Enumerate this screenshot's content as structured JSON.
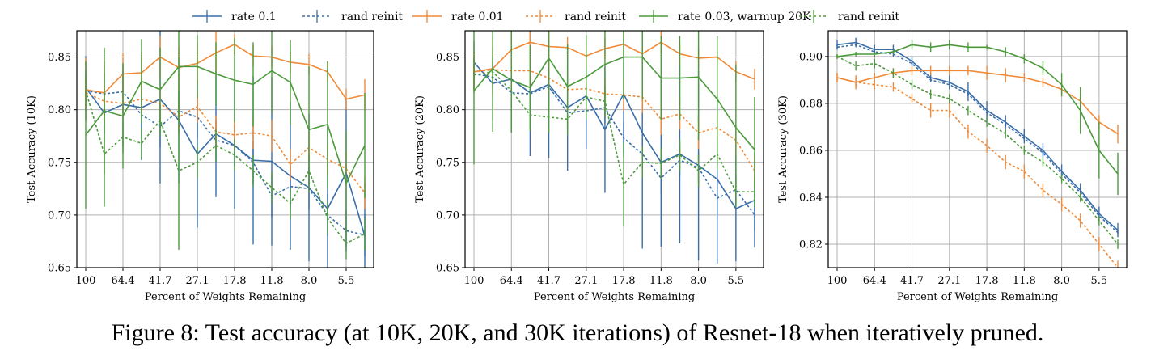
{
  "caption": "Figure 8: Test accuracy (at 10K, 20K, and 30K iterations) of Resnet-18 when iteratively pruned.",
  "legend": [
    {
      "label": "rate 0.1",
      "color": "#3a6ea8",
      "dashed": false
    },
    {
      "label": "rand reinit",
      "color": "#3a6ea8",
      "dashed": true
    },
    {
      "label": "rate 0.01",
      "color": "#f08a38",
      "dashed": false
    },
    {
      "label": "rand reinit",
      "color": "#f08a38",
      "dashed": true
    },
    {
      "label": "rate 0.03, warmup 20K",
      "color": "#4c9a3c",
      "dashed": false
    },
    {
      "label": "rand reinit",
      "color": "#4c9a3c",
      "dashed": true
    }
  ],
  "chart_data": [
    {
      "type": "line",
      "xlabel": "Percent of Weights Remaining",
      "ylabel": "Test Accuracy (10K)",
      "xticks": [
        "100",
        "64.4",
        "41.7",
        "27.1",
        "17.8",
        "11.8",
        "8.0",
        "5.5"
      ],
      "x": [
        "100",
        "80.0",
        "64.4",
        "51.4",
        "41.7",
        "33.5",
        "27.1",
        "21.8",
        "17.8",
        "14.4",
        "11.8",
        "9.6",
        "8.0",
        "6.6",
        "5.5",
        "4.6"
      ],
      "ylim": [
        0.65,
        0.875
      ],
      "yticks": [
        0.65,
        0.7,
        0.75,
        0.8,
        0.85
      ],
      "grid": true,
      "series": [
        {
          "name": "rate 0.1",
          "color": "#3a6ea8",
          "dashed": false,
          "values": [
            0.821,
            0.797,
            0.805,
            0.802,
            0.81,
            0.79,
            0.758,
            0.777,
            0.766,
            0.752,
            0.751,
            0.737,
            0.726,
            0.706,
            0.74,
            0.68
          ],
          "err": [
            0.03,
            0.02,
            0.04,
            0.05,
            0.08,
            0.06,
            0.07,
            0.06,
            0.06,
            0.08,
            0.08,
            0.07,
            0.07,
            0.08,
            0.07,
            0.05
          ]
        },
        {
          "name": "rand reinit",
          "color": "#3a6ea8",
          "dashed": true,
          "values": [
            0.818,
            0.815,
            0.817,
            0.795,
            0.784,
            0.799,
            0.793,
            0.771,
            0.766,
            0.75,
            0.718,
            0.727,
            0.725,
            0.7,
            0.685,
            0.681
          ],
          "err": [
            0.02,
            0.02,
            0.02,
            0.02,
            0.02,
            0.02,
            0.02,
            0.02,
            0.02,
            0.02,
            0.02,
            0.02,
            0.02,
            0.02,
            0.02,
            0.02
          ]
        },
        {
          "name": "rate 0.01",
          "color": "#f08a38",
          "dashed": false,
          "values": [
            0.819,
            0.816,
            0.834,
            0.835,
            0.85,
            0.84,
            0.844,
            0.854,
            0.862,
            0.851,
            0.85,
            0.845,
            0.843,
            0.836,
            0.81,
            0.814
          ],
          "err": [
            0.03,
            0.03,
            0.02,
            0.02,
            0.02,
            0.02,
            0.02,
            0.02,
            0.01,
            0.01,
            0.01,
            0.01,
            0.01,
            0.01,
            0.01,
            0.015
          ]
        },
        {
          "name": "rand reinit",
          "color": "#f08a38",
          "dashed": true,
          "values": [
            0.816,
            0.808,
            0.806,
            0.81,
            0.806,
            0.793,
            0.803,
            0.779,
            0.776,
            0.778,
            0.775,
            0.748,
            0.764,
            0.753,
            0.744,
            0.721
          ],
          "err": [
            0.015,
            0.015,
            0.015,
            0.015,
            0.015,
            0.015,
            0.015,
            0.015,
            0.015,
            0.015,
            0.015,
            0.015,
            0.015,
            0.015,
            0.015,
            0.015
          ]
        },
        {
          "name": "rate 0.03, warmup 20K",
          "color": "#4c9a3c",
          "dashed": false,
          "values": [
            0.776,
            0.799,
            0.794,
            0.827,
            0.819,
            0.841,
            0.841,
            0.834,
            0.828,
            0.824,
            0.837,
            0.826,
            0.781,
            0.786,
            0.73,
            0.766
          ],
          "err": [
            0.07,
            0.06,
            0.05,
            0.04,
            0.04,
            0.05,
            0.03,
            0.03,
            0.04,
            0.04,
            0.04,
            0.04,
            0.06,
            0.06,
            0.05,
            0.05
          ]
        },
        {
          "name": "rand reinit",
          "color": "#4c9a3c",
          "dashed": true,
          "values": [
            0.818,
            0.758,
            0.774,
            0.768,
            0.79,
            0.742,
            0.75,
            0.766,
            0.757,
            0.742,
            0.726,
            0.711,
            0.742,
            0.697,
            0.673,
            0.682
          ],
          "err": [
            0.015,
            0.05,
            0.015,
            0.015,
            0.015,
            0.075,
            0.015,
            0.015,
            0.015,
            0.015,
            0.015,
            0.015,
            0.015,
            0.015,
            0.015,
            0.015
          ]
        }
      ]
    },
    {
      "type": "line",
      "xlabel": "Percent of Weights Remaining",
      "ylabel": "Test Accuracy (20K)",
      "xticks": [
        "100",
        "64.4",
        "41.7",
        "27.1",
        "17.8",
        "11.8",
        "8.0",
        "5.5"
      ],
      "x": [
        "100",
        "80.0",
        "64.4",
        "51.4",
        "41.7",
        "33.5",
        "27.1",
        "21.8",
        "17.8",
        "14.4",
        "11.8",
        "9.6",
        "8.0",
        "6.6",
        "5.5",
        "4.6"
      ],
      "ylim": [
        0.65,
        0.875
      ],
      "yticks": [
        0.65,
        0.7,
        0.75,
        0.8,
        0.85
      ],
      "grid": true,
      "series": [
        {
          "name": "rate 0.1",
          "color": "#3a6ea8",
          "dashed": false,
          "values": [
            0.845,
            0.825,
            0.829,
            0.816,
            0.824,
            0.802,
            0.813,
            0.781,
            0.815,
            0.778,
            0.75,
            0.758,
            0.747,
            0.734,
            0.706,
            0.714
          ],
          "err": [
            0.02,
            0.035,
            0.05,
            0.06,
            0.07,
            0.06,
            0.05,
            0.06,
            0.06,
            0.11,
            0.08,
            0.085,
            0.09,
            0.08,
            0.05,
            0.045
          ]
        },
        {
          "name": "rand reinit",
          "color": "#3a6ea8",
          "dashed": true,
          "values": [
            0.834,
            0.831,
            0.816,
            0.815,
            0.822,
            0.797,
            0.799,
            0.802,
            0.773,
            0.758,
            0.735,
            0.752,
            0.745,
            0.716,
            0.724,
            0.7
          ],
          "err": [
            0.015,
            0.015,
            0.015,
            0.015,
            0.015,
            0.015,
            0.015,
            0.015,
            0.015,
            0.015,
            0.015,
            0.015,
            0.015,
            0.015,
            0.015,
            0.015
          ]
        },
        {
          "name": "rate 0.01",
          "color": "#f08a38",
          "dashed": false,
          "values": [
            0.836,
            0.839,
            0.857,
            0.864,
            0.86,
            0.859,
            0.851,
            0.858,
            0.862,
            0.853,
            0.864,
            0.853,
            0.849,
            0.85,
            0.836,
            0.829
          ],
          "err": [
            0.02,
            0.03,
            0.02,
            0.01,
            0.015,
            0.01,
            0.01,
            0.01,
            0.01,
            0.01,
            0.01,
            0.01,
            0.01,
            0.005,
            0.01,
            0.01
          ]
        },
        {
          "name": "rand reinit",
          "color": "#f08a38",
          "dashed": true,
          "values": [
            0.836,
            0.838,
            0.837,
            0.837,
            0.83,
            0.819,
            0.82,
            0.815,
            0.814,
            0.812,
            0.791,
            0.796,
            0.778,
            0.783,
            0.771,
            0.742
          ],
          "err": [
            0.015,
            0.015,
            0.015,
            0.015,
            0.015,
            0.015,
            0.015,
            0.015,
            0.015,
            0.015,
            0.015,
            0.015,
            0.015,
            0.015,
            0.015,
            0.015
          ]
        },
        {
          "name": "rate 0.03, warmup 20K",
          "color": "#4c9a3c",
          "dashed": false,
          "values": [
            0.818,
            0.839,
            0.828,
            0.821,
            0.849,
            0.822,
            0.831,
            0.843,
            0.85,
            0.85,
            0.83,
            0.83,
            0.831,
            0.81,
            0.783,
            0.762
          ],
          "err": [
            0.07,
            0.06,
            0.05,
            0.04,
            0.05,
            0.04,
            0.04,
            0.04,
            0.04,
            0.04,
            0.04,
            0.04,
            0.06,
            0.06,
            0.06,
            0.05
          ]
        },
        {
          "name": "rand reinit",
          "color": "#4c9a3c",
          "dashed": true,
          "values": [
            0.833,
            0.836,
            0.818,
            0.795,
            0.793,
            0.791,
            0.812,
            0.808,
            0.729,
            0.75,
            0.749,
            0.757,
            0.742,
            0.758,
            0.722,
            0.722
          ],
          "err": [
            0.015,
            0.015,
            0.015,
            0.015,
            0.015,
            0.015,
            0.015,
            0.015,
            0.04,
            0.015,
            0.015,
            0.015,
            0.015,
            0.015,
            0.015,
            0.015
          ]
        }
      ]
    },
    {
      "type": "line",
      "xlabel": "Percent of Weights Remaining",
      "ylabel": "Test Accuracy (30K)",
      "xticks": [
        "100",
        "64.4",
        "41.7",
        "27.1",
        "17.8",
        "11.8",
        "8.0",
        "5.5"
      ],
      "x": [
        "100",
        "80.0",
        "64.4",
        "51.4",
        "41.7",
        "33.5",
        "27.1",
        "21.8",
        "17.8",
        "14.4",
        "11.8",
        "9.6",
        "8.0",
        "6.6",
        "5.5",
        "4.6"
      ],
      "ylim": [
        0.81,
        0.911
      ],
      "yticks": [
        0.82,
        0.84,
        0.86,
        0.88,
        0.9
      ],
      "grid": true,
      "series": [
        {
          "name": "rate 0.1",
          "color": "#3a6ea8",
          "dashed": false,
          "values": [
            0.905,
            0.906,
            0.903,
            0.903,
            0.898,
            0.891,
            0.889,
            0.885,
            0.877,
            0.872,
            0.866,
            0.86,
            0.851,
            0.843,
            0.833,
            0.826
          ],
          "err": [
            0.002,
            0.002,
            0.002,
            0.002,
            0.002,
            0.002,
            0.003,
            0.004,
            0.004,
            0.003,
            0.003,
            0.003,
            0.003,
            0.003,
            0.003,
            0.003
          ]
        },
        {
          "name": "rand reinit",
          "color": "#3a6ea8",
          "dashed": true,
          "values": [
            0.904,
            0.905,
            0.902,
            0.901,
            0.897,
            0.89,
            0.888,
            0.884,
            0.876,
            0.871,
            0.865,
            0.859,
            0.85,
            0.842,
            0.832,
            0.825
          ],
          "err": [
            0.001,
            0.001,
            0.001,
            0.001,
            0.001,
            0.001,
            0.001,
            0.001,
            0.001,
            0.001,
            0.001,
            0.001,
            0.001,
            0.001,
            0.001,
            0.001
          ]
        },
        {
          "name": "rate 0.01",
          "color": "#f08a38",
          "dashed": false,
          "values": [
            0.891,
            0.889,
            0.891,
            0.893,
            0.894,
            0.894,
            0.894,
            0.894,
            0.893,
            0.892,
            0.891,
            0.889,
            0.886,
            0.881,
            0.872,
            0.867
          ],
          "err": [
            0.002,
            0.003,
            0.002,
            0.002,
            0.002,
            0.002,
            0.002,
            0.002,
            0.003,
            0.003,
            0.002,
            0.002,
            0.003,
            0.003,
            0.003,
            0.004
          ]
        },
        {
          "name": "rand reinit",
          "color": "#f08a38",
          "dashed": true,
          "values": [
            0.891,
            0.889,
            0.888,
            0.887,
            0.882,
            0.877,
            0.877,
            0.868,
            0.862,
            0.855,
            0.851,
            0.843,
            0.837,
            0.83,
            0.82,
            0.81
          ],
          "err": [
            0.002,
            0.002,
            0.002,
            0.002,
            0.002,
            0.003,
            0.003,
            0.003,
            0.003,
            0.003,
            0.003,
            0.003,
            0.003,
            0.003,
            0.003,
            0.003
          ]
        },
        {
          "name": "rate 0.03, warmup 20K",
          "color": "#4c9a3c",
          "dashed": false,
          "values": [
            0.9,
            0.901,
            0.901,
            0.902,
            0.905,
            0.904,
            0.905,
            0.904,
            0.904,
            0.902,
            0.899,
            0.895,
            0.888,
            0.877,
            0.86,
            0.85
          ],
          "err": [
            0.001,
            0.001,
            0.001,
            0.001,
            0.002,
            0.002,
            0.002,
            0.002,
            0.001,
            0.002,
            0.002,
            0.003,
            0.005,
            0.01,
            0.012,
            0.009
          ]
        },
        {
          "name": "rand reinit",
          "color": "#4c9a3c",
          "dashed": true,
          "values": [
            0.9,
            0.896,
            0.897,
            0.893,
            0.888,
            0.884,
            0.882,
            0.877,
            0.872,
            0.867,
            0.86,
            0.855,
            0.848,
            0.84,
            0.83,
            0.82
          ],
          "err": [
            0.001,
            0.002,
            0.002,
            0.002,
            0.002,
            0.002,
            0.002,
            0.002,
            0.002,
            0.002,
            0.002,
            0.002,
            0.002,
            0.002,
            0.002,
            0.002
          ]
        }
      ]
    }
  ]
}
